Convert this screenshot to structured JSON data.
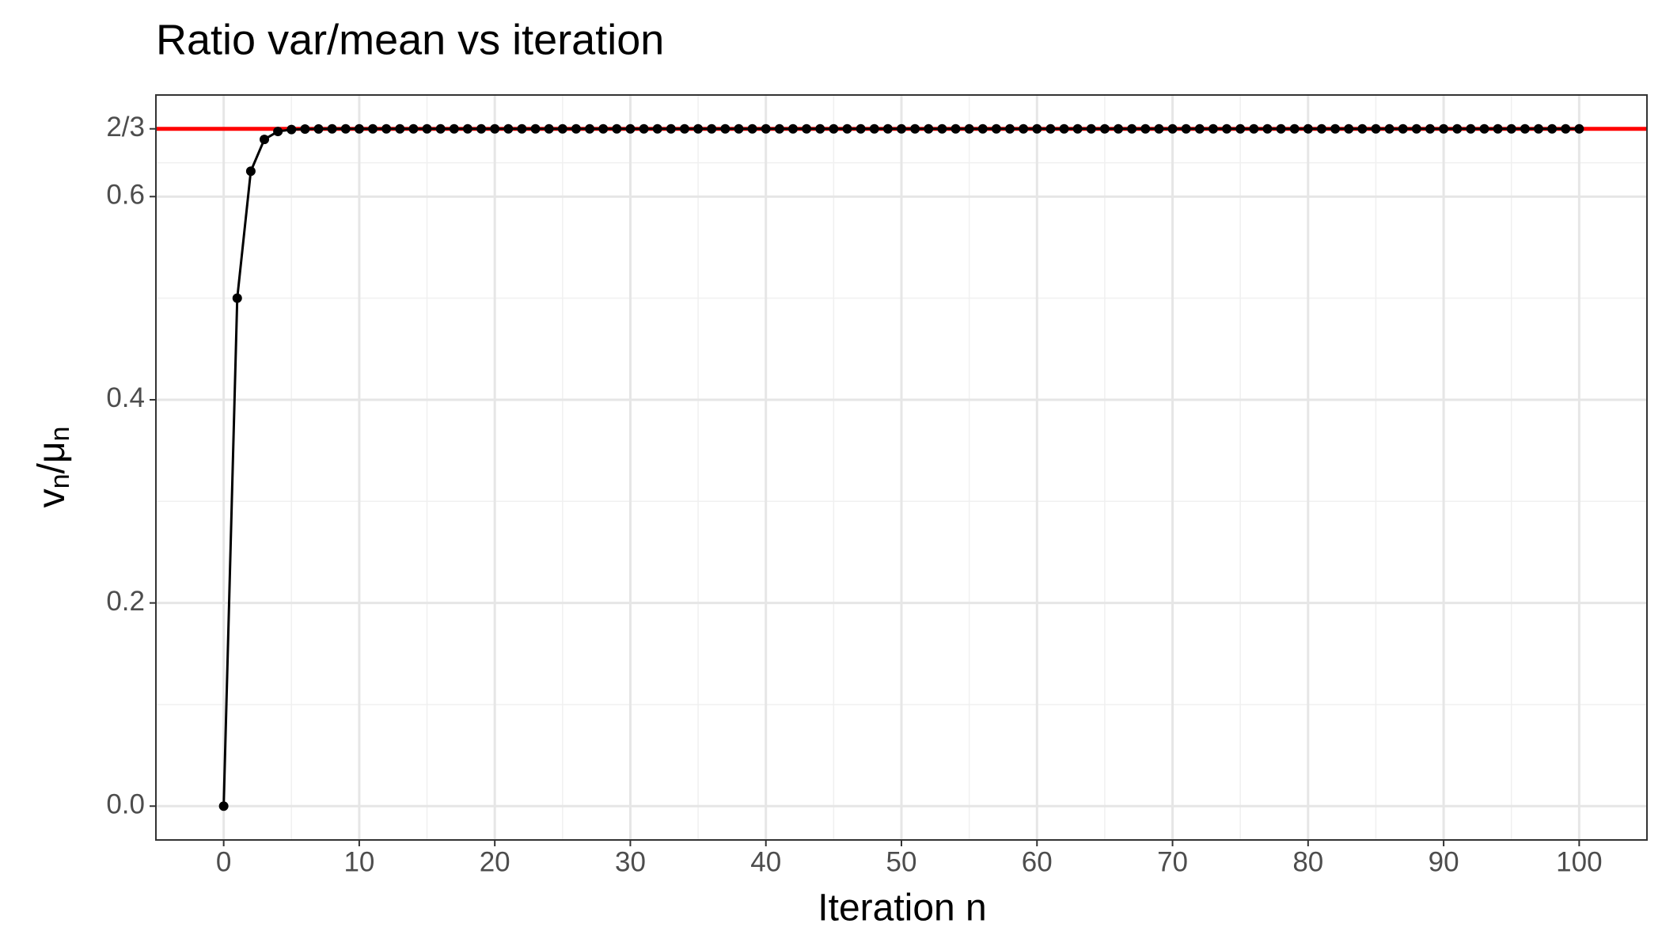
{
  "chart_data": {
    "type": "line",
    "title": "Ratio var/mean vs iteration",
    "x_label": "Iteration n",
    "y_label": [
      "v",
      "n",
      "/",
      "μ",
      "n"
    ],
    "x": [
      0,
      1,
      2,
      3,
      4,
      5,
      6,
      7,
      8,
      9,
      10,
      11,
      12,
      13,
      14,
      15,
      16,
      17,
      18,
      19,
      20,
      21,
      22,
      23,
      24,
      25,
      26,
      27,
      28,
      29,
      30,
      31,
      32,
      33,
      34,
      35,
      36,
      37,
      38,
      39,
      40,
      41,
      42,
      43,
      44,
      45,
      46,
      47,
      48,
      49,
      50,
      51,
      52,
      53,
      54,
      55,
      56,
      57,
      58,
      59,
      60,
      61,
      62,
      63,
      64,
      65,
      66,
      67,
      68,
      69,
      70,
      71,
      72,
      73,
      74,
      75,
      76,
      77,
      78,
      79,
      80,
      81,
      82,
      83,
      84,
      85,
      86,
      87,
      88,
      89,
      90,
      91,
      92,
      93,
      94,
      95,
      96,
      97,
      98,
      99,
      100
    ],
    "values": [
      0,
      0.5,
      0.625,
      0.6563,
      0.6641,
      0.666,
      0.6665,
      0.6666,
      0.6667,
      0.6667,
      0.6667,
      0.6667,
      0.6667,
      0.6667,
      0.6667,
      0.6667,
      0.6667,
      0.6667,
      0.6667,
      0.6667,
      0.6667,
      0.6667,
      0.6667,
      0.6667,
      0.6667,
      0.6667,
      0.6667,
      0.6667,
      0.6667,
      0.6667,
      0.6667,
      0.6667,
      0.6667,
      0.6667,
      0.6667,
      0.6667,
      0.6667,
      0.6667,
      0.6667,
      0.6667,
      0.6667,
      0.6667,
      0.6667,
      0.6667,
      0.6667,
      0.6667,
      0.6667,
      0.6667,
      0.6667,
      0.6667,
      0.6667,
      0.6667,
      0.6667,
      0.6667,
      0.6667,
      0.6667,
      0.6667,
      0.6667,
      0.6667,
      0.6667,
      0.6667,
      0.6667,
      0.6667,
      0.6667,
      0.6667,
      0.6667,
      0.6667,
      0.6667,
      0.6667,
      0.6667,
      0.6667,
      0.6667,
      0.6667,
      0.6667,
      0.6667,
      0.6667,
      0.6667,
      0.6667,
      0.6667,
      0.6667,
      0.6667,
      0.6667,
      0.6667,
      0.6667,
      0.6667,
      0.6667,
      0.6667,
      0.6667,
      0.6667,
      0.6667,
      0.6667,
      0.6667,
      0.6667,
      0.6667,
      0.6667,
      0.6667,
      0.6667,
      0.6667,
      0.6667,
      0.6667,
      0.6667
    ],
    "color": "#000000",
    "hline": {
      "value": 0.6667,
      "color": "#ff0000"
    },
    "xlim": [
      -5,
      105
    ],
    "xticks": [
      0,
      10,
      20,
      30,
      40,
      50,
      60,
      70,
      80,
      90,
      100
    ],
    "minor_xticks": [
      5,
      15,
      25,
      35,
      45,
      55,
      65,
      75,
      85,
      95
    ],
    "ylim": [
      -0.0333,
      0.7
    ],
    "yticks": [
      {
        "value": 0,
        "label": "0.0"
      },
      0.2,
      0.4,
      0.6,
      {
        "value": 0.6667,
        "label": "2/3"
      }
    ],
    "minor_yticks": [
      0.1,
      0.3,
      0.5,
      0.6333
    ],
    "grid": true
  }
}
